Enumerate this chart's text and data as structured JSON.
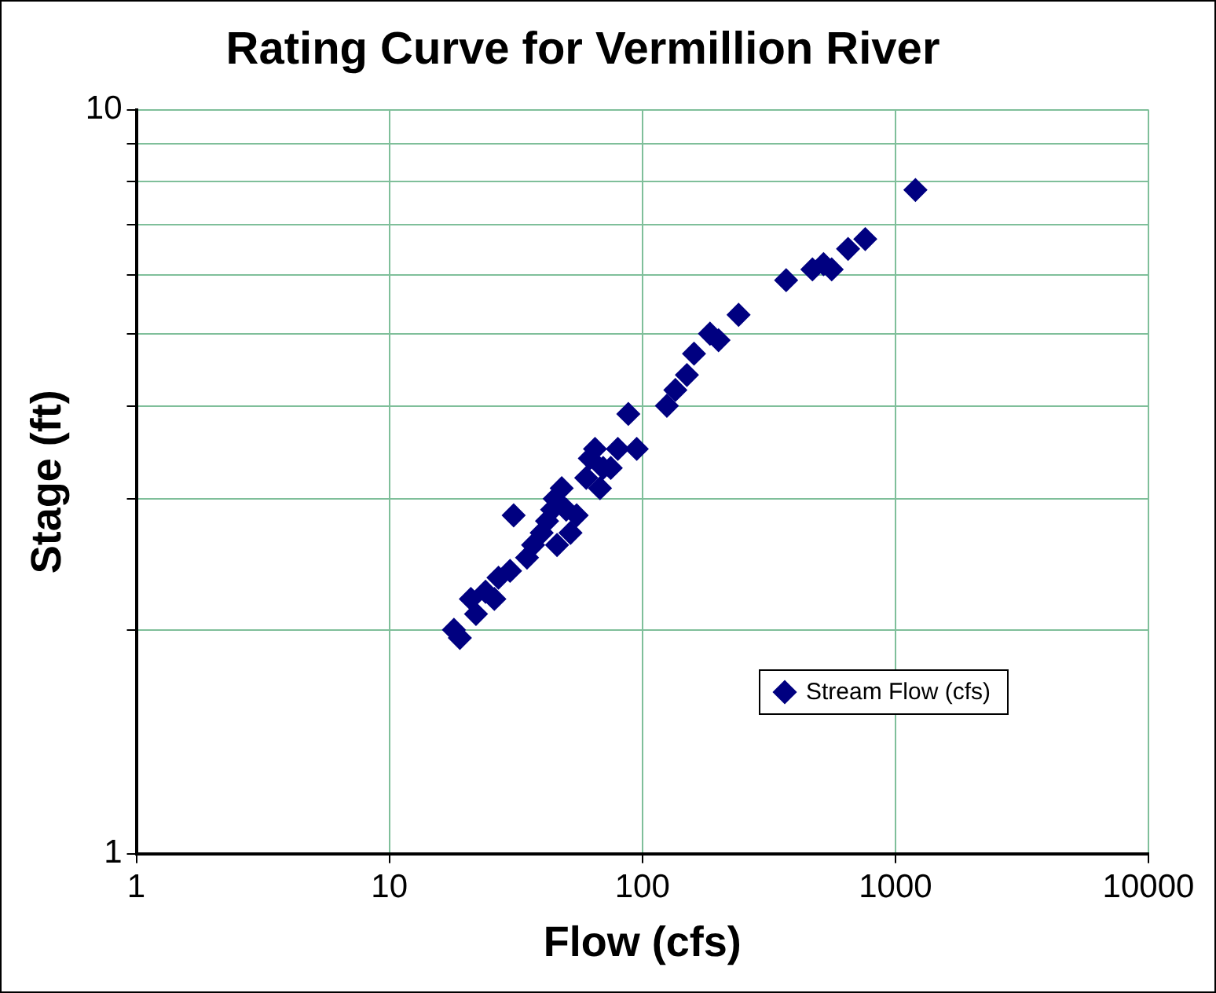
{
  "chart_data": {
    "type": "scatter",
    "title": "Rating Curve for Vermillion River",
    "xlabel": "Flow (cfs)",
    "ylabel": "Stage (ft)",
    "log": "xy",
    "xlim": [
      1,
      10000
    ],
    "ylim": [
      1,
      10
    ],
    "xticks": [
      1,
      10,
      100,
      1000,
      10000
    ],
    "yticks": [
      1,
      {
        "value": 2,
        "label": null
      },
      {
        "value": 3,
        "label": null
      },
      {
        "value": 4,
        "label": null
      },
      {
        "value": 5,
        "label": null
      },
      {
        "value": 6,
        "label": null
      },
      {
        "value": 7,
        "label": null
      },
      {
        "value": 8,
        "label": null
      },
      {
        "value": 9,
        "label": null
      },
      10
    ],
    "grid": true,
    "legend": "bottom right",
    "marker": "diamond",
    "series": [
      {
        "name": "Stream Flow (cfs)",
        "color": "#000080",
        "x": [
          18,
          19,
          21,
          22,
          24,
          26,
          27,
          30,
          31,
          33,
          35,
          37,
          40,
          42,
          44,
          45,
          46,
          48,
          50,
          52,
          55,
          60,
          62,
          65,
          68,
          70,
          75,
          80,
          88,
          95,
          125,
          135,
          150,
          160,
          185,
          200,
          240,
          370,
          470,
          520,
          560,
          650,
          760,
          1200
        ],
        "values": [
          2.0,
          1.95,
          2.2,
          2.1,
          2.25,
          2.2,
          2.35,
          2.4,
          2.85,
          null,
          2.5,
          2.6,
          2.7,
          2.8,
          2.9,
          3.0,
          2.6,
          3.1,
          2.9,
          2.7,
          2.85,
          3.2,
          3.4,
          3.5,
          3.1,
          3.3,
          3.3,
          3.5,
          3.9,
          3.5,
          4.0,
          4.2,
          4.4,
          4.7,
          5.0,
          4.9,
          5.3,
          5.9,
          6.1,
          6.2,
          6.1,
          6.5,
          6.7,
          7.8
        ]
      }
    ]
  }
}
